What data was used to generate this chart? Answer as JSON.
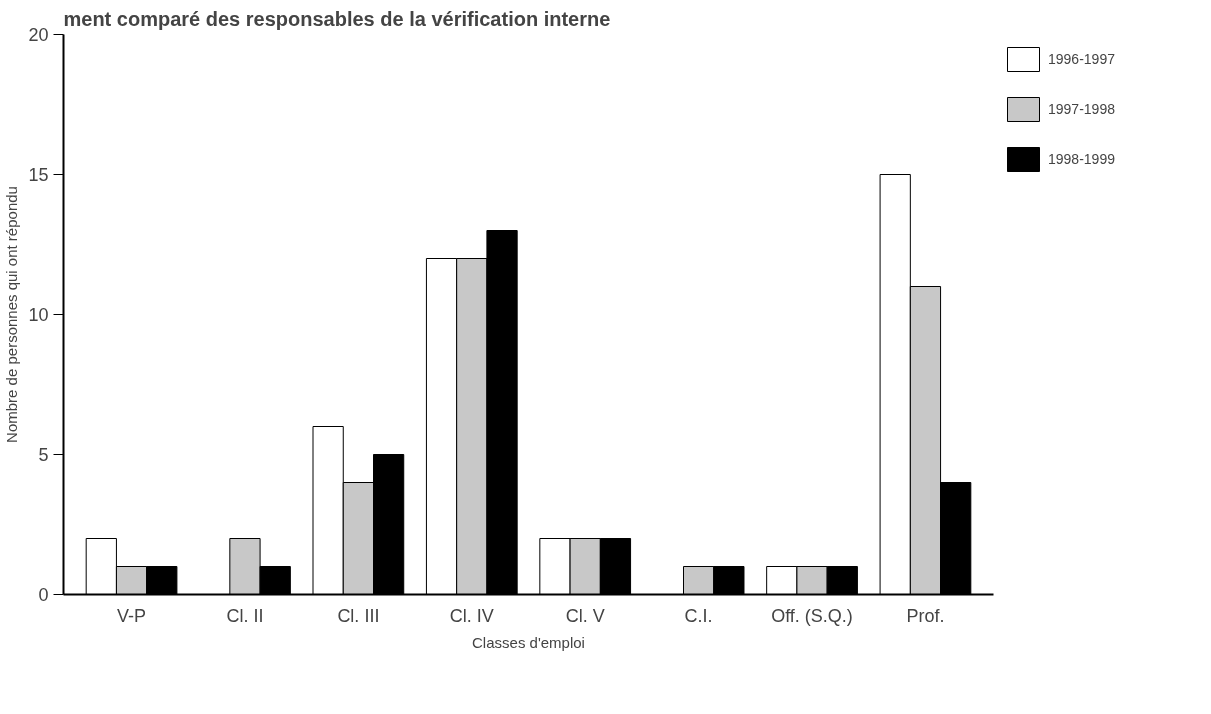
{
  "chart_data": {
    "type": "bar",
    "title": "ment comparé des responsables de la vérification interne",
    "xlabel": "Classes d'emploi",
    "ylabel": "Nombre de personnes qui ont répondu",
    "categories": [
      "V-P",
      "Cl. II",
      "Cl. III",
      "Cl. IV",
      "Cl. V",
      "C.I.",
      "Off. (S.Q.)",
      "Prof."
    ],
    "series": [
      {
        "name": "1996-1997",
        "color": "#ffffff",
        "values": [
          2,
          0,
          6,
          12,
          2,
          0,
          1,
          15
        ]
      },
      {
        "name": "1997-1998",
        "color": "#c8c8c8",
        "values": [
          1,
          2,
          4,
          12,
          2,
          1,
          1,
          11
        ]
      },
      {
        "name": "1998-1999",
        "color": "#000000",
        "values": [
          1,
          1,
          5,
          13,
          2,
          1,
          1,
          4
        ]
      }
    ],
    "ylim": [
      0,
      20
    ],
    "yticks": [
      0,
      5,
      10,
      15,
      20
    ],
    "grid": false,
    "legend": "top right"
  }
}
